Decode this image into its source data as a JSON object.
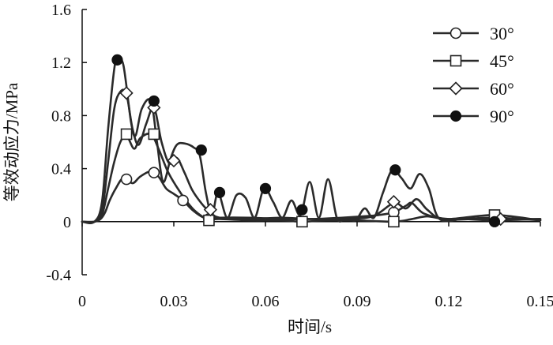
{
  "chart_data": {
    "type": "line",
    "title": "",
    "xlabel": "时间/s",
    "ylabel": "等效动应力/MPa",
    "xlim": [
      0,
      0.15
    ],
    "ylim": [
      -0.4,
      1.6
    ],
    "xticks": [
      "0",
      "0.03",
      "0.06",
      "0.09",
      "0.12",
      "0.15"
    ],
    "yticks": [
      "-0.4",
      "0",
      "0.4",
      "0.8",
      "1.2",
      "1.6"
    ],
    "grid": false,
    "legend_position": "top-right",
    "series": [
      {
        "name": "30°",
        "marker": "circle-open",
        "x": [
          0,
          0.004,
          0.006,
          0.0075,
          0.009,
          0.011,
          0.0135,
          0.0165,
          0.019,
          0.0225,
          0.025,
          0.0275,
          0.03,
          0.033,
          0.036,
          0.039,
          0.0415,
          0.045,
          0.055,
          0.065,
          0.075,
          0.085,
          0.092,
          0.097,
          0.102,
          0.106,
          0.108,
          0.112,
          0.12,
          0.135,
          0.15
        ],
        "y": [
          0,
          0,
          0.02,
          0.07,
          0.16,
          0.25,
          0.33,
          0.29,
          0.34,
          0.38,
          0.34,
          0.25,
          0.21,
          0.16,
          0.09,
          0.04,
          0.02,
          0.03,
          0.03,
          0.02,
          0.02,
          0.03,
          0.04,
          0.05,
          0.07,
          0.12,
          0.14,
          0.06,
          0.02,
          0.03,
          0.01
        ],
        "marker_x": [
          0.0145,
          0.0235,
          0.033,
          0.0415,
          0.102,
          0.135
        ],
        "marker_y": [
          0.32,
          0.37,
          0.16,
          0.02,
          0.07,
          0.03
        ]
      },
      {
        "name": "45°",
        "marker": "square-open",
        "x": [
          0,
          0.004,
          0.0065,
          0.0085,
          0.0105,
          0.0125,
          0.0145,
          0.017,
          0.019,
          0.0225,
          0.025,
          0.028,
          0.031,
          0.034,
          0.037,
          0.041,
          0.045,
          0.055,
          0.065,
          0.072,
          0.08,
          0.09,
          0.102,
          0.108,
          0.113,
          0.12,
          0.135,
          0.15
        ],
        "y": [
          0,
          0,
          0.05,
          0.25,
          0.45,
          0.6,
          0.65,
          0.55,
          0.63,
          0.66,
          0.55,
          0.38,
          0.26,
          0.16,
          0.08,
          0.02,
          0.02,
          0.01,
          0.01,
          0.0,
          0.01,
          0.01,
          0.0,
          0.02,
          0.04,
          0.02,
          0.05,
          0.01
        ],
        "marker_x": [
          0.0145,
          0.0235,
          0.0415,
          0.072,
          0.102,
          0.135
        ],
        "marker_y": [
          0.66,
          0.66,
          0.01,
          0.0,
          0.0,
          0.05
        ]
      },
      {
        "name": "60°",
        "marker": "diamond-open",
        "x": [
          0,
          0.004,
          0.0065,
          0.0085,
          0.0105,
          0.0125,
          0.0145,
          0.0165,
          0.0185,
          0.021,
          0.0235,
          0.026,
          0.0285,
          0.031,
          0.0335,
          0.036,
          0.039,
          0.0415,
          0.045,
          0.055,
          0.065,
          0.075,
          0.085,
          0.095,
          0.102,
          0.106,
          0.1095,
          0.113,
          0.118,
          0.13,
          0.15
        ],
        "y": [
          0,
          0,
          0.08,
          0.45,
          0.85,
          0.98,
          0.96,
          0.7,
          0.58,
          0.74,
          0.86,
          0.6,
          0.44,
          0.48,
          0.37,
          0.24,
          0.14,
          0.08,
          0.03,
          0.02,
          0.03,
          0.02,
          0.02,
          0.04,
          0.14,
          0.1,
          0.17,
          0.09,
          0.02,
          0.02,
          0.02
        ],
        "marker_x": [
          0.0145,
          0.0235,
          0.03,
          0.042,
          0.102,
          0.137
        ],
        "marker_y": [
          0.97,
          0.86,
          0.46,
          0.09,
          0.15,
          0.02
        ]
      },
      {
        "name": "90°",
        "marker": "circle-filled",
        "x": [
          0,
          0.004,
          0.0065,
          0.0085,
          0.0105,
          0.0115,
          0.0135,
          0.016,
          0.0175,
          0.0195,
          0.0225,
          0.0245,
          0.0265,
          0.029,
          0.031,
          0.0335,
          0.0365,
          0.0385,
          0.0405,
          0.0425,
          0.0445,
          0.0475,
          0.0505,
          0.0535,
          0.0565,
          0.0595,
          0.0625,
          0.0655,
          0.0685,
          0.0715,
          0.0745,
          0.0775,
          0.0805,
          0.0835,
          0.0865,
          0.0895,
          0.0925,
          0.0955,
          0.0985,
          0.1015,
          0.1045,
          0.1075,
          0.1105,
          0.1135,
          0.117,
          0.125,
          0.135,
          0.15
        ],
        "y": [
          0,
          0,
          0.15,
          0.7,
          1.15,
          1.22,
          1.18,
          0.75,
          0.65,
          0.85,
          0.91,
          0.6,
          0.3,
          0.48,
          0.58,
          0.59,
          0.56,
          0.5,
          0.22,
          0.05,
          0.22,
          0.03,
          0.2,
          0.18,
          0.03,
          0.25,
          0.15,
          0.03,
          0.16,
          0.05,
          0.3,
          0.03,
          0.32,
          0.02,
          0.03,
          0.01,
          0.1,
          0.03,
          0.22,
          0.39,
          0.33,
          0.25,
          0.36,
          0.25,
          0.02,
          0.02,
          0.01,
          0.02
        ],
        "marker_x": [
          0.0115,
          0.0235,
          0.039,
          0.045,
          0.06,
          0.072,
          0.1025,
          0.135
        ],
        "marker_y": [
          1.22,
          0.91,
          0.54,
          0.22,
          0.25,
          0.09,
          0.39,
          0.0
        ]
      }
    ]
  }
}
